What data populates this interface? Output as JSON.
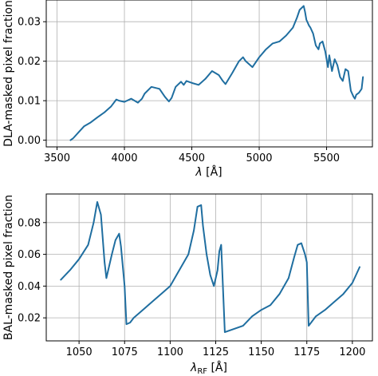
{
  "chart_data": [
    {
      "type": "line",
      "xlabel": "λ [Å]",
      "ylabel": "DLA-masked pixel fraction",
      "xlim": [
        3420,
        5840
      ],
      "ylim": [
        -0.0017,
        0.0355
      ],
      "xticks": [
        3500,
        4000,
        4500,
        5000,
        5500
      ],
      "xtick_labels": [
        "3500",
        "4000",
        "4500",
        "5000",
        "5500"
      ],
      "yticks": [
        0.0,
        0.01,
        0.02,
        0.03
      ],
      "ytick_labels": [
        "0.00",
        "0.01",
        "0.02",
        "0.03"
      ],
      "grid": true,
      "legend": "none",
      "colors": {
        "line": "#1f6ea0",
        "grid": "#b0b0b0"
      },
      "series": [
        {
          "x": [
            3600,
            3620,
            3660,
            3700,
            3750,
            3800,
            3850,
            3900,
            3940,
            3960,
            4000,
            4050,
            4100,
            4130,
            4150,
            4200,
            4260,
            4300,
            4330,
            4350,
            4380,
            4420,
            4440,
            4460,
            4500,
            4550,
            4600,
            4650,
            4700,
            4730,
            4750,
            4800,
            4850,
            4880,
            4900,
            4950,
            5000,
            5050,
            5100,
            5150,
            5200,
            5250,
            5280,
            5300,
            5330,
            5340,
            5350,
            5370,
            5380,
            5400,
            5420,
            5440,
            5450,
            5470,
            5490,
            5510,
            5520,
            5540,
            5560,
            5580,
            5600,
            5620,
            5640,
            5660,
            5680,
            5700,
            5710,
            5720,
            5740,
            5760,
            5770
          ],
          "y": [
            0.0,
            0.0005,
            0.002,
            0.0035,
            0.0045,
            0.0058,
            0.007,
            0.0085,
            0.0103,
            0.01,
            0.0097,
            0.0105,
            0.0095,
            0.0105,
            0.0118,
            0.0135,
            0.013,
            0.011,
            0.0098,
            0.0107,
            0.0135,
            0.0148,
            0.014,
            0.015,
            0.0145,
            0.014,
            0.0155,
            0.0175,
            0.0165,
            0.015,
            0.0142,
            0.017,
            0.02,
            0.021,
            0.02,
            0.0185,
            0.021,
            0.023,
            0.0245,
            0.025,
            0.0265,
            0.0285,
            0.031,
            0.033,
            0.034,
            0.0325,
            0.0305,
            0.029,
            0.0285,
            0.027,
            0.024,
            0.023,
            0.0245,
            0.025,
            0.0225,
            0.0185,
            0.0215,
            0.0175,
            0.0205,
            0.019,
            0.016,
            0.015,
            0.018,
            0.0175,
            0.0125,
            0.011,
            0.0105,
            0.0115,
            0.012,
            0.013,
            0.016
          ]
        }
      ]
    },
    {
      "type": "line",
      "xlabel": "λ_RF [Å]",
      "ylabel": "BAL-masked pixel fraction",
      "xlim": [
        1032,
        1211
      ],
      "ylim": [
        0.0055,
        0.098
      ],
      "xticks": [
        1050,
        1075,
        1100,
        1125,
        1150,
        1175,
        1200
      ],
      "xtick_labels": [
        "1050",
        "1075",
        "1100",
        "1125",
        "1150",
        "1175",
        "1200"
      ],
      "yticks": [
        0.02,
        0.04,
        0.06,
        0.08
      ],
      "ytick_labels": [
        "0.02",
        "0.04",
        "0.06",
        "0.08"
      ],
      "grid": true,
      "legend": "none",
      "colors": {
        "line": "#1f6ea0",
        "grid": "#b0b0b0"
      },
      "series": [
        {
          "x": [
            1040,
            1045,
            1050,
            1055,
            1058,
            1060,
            1062,
            1064,
            1065,
            1068,
            1070,
            1072,
            1073,
            1075,
            1076,
            1078,
            1080,
            1085,
            1090,
            1095,
            1100,
            1105,
            1110,
            1113,
            1115,
            1117,
            1118,
            1120,
            1122,
            1124,
            1126,
            1127,
            1128,
            1130,
            1135,
            1140,
            1145,
            1150,
            1155,
            1160,
            1165,
            1168,
            1170,
            1172,
            1174,
            1175,
            1176,
            1178,
            1180,
            1185,
            1190,
            1195,
            1200,
            1204
          ],
          "y": [
            0.044,
            0.05,
            0.057,
            0.066,
            0.08,
            0.093,
            0.085,
            0.055,
            0.045,
            0.06,
            0.069,
            0.073,
            0.065,
            0.04,
            0.016,
            0.017,
            0.02,
            0.025,
            0.03,
            0.035,
            0.04,
            0.05,
            0.06,
            0.075,
            0.09,
            0.091,
            0.078,
            0.06,
            0.047,
            0.04,
            0.05,
            0.062,
            0.066,
            0.011,
            0.013,
            0.015,
            0.021,
            0.025,
            0.028,
            0.035,
            0.045,
            0.058,
            0.066,
            0.067,
            0.06,
            0.055,
            0.015,
            0.018,
            0.021,
            0.025,
            0.03,
            0.035,
            0.042,
            0.052
          ]
        }
      ]
    }
  ]
}
